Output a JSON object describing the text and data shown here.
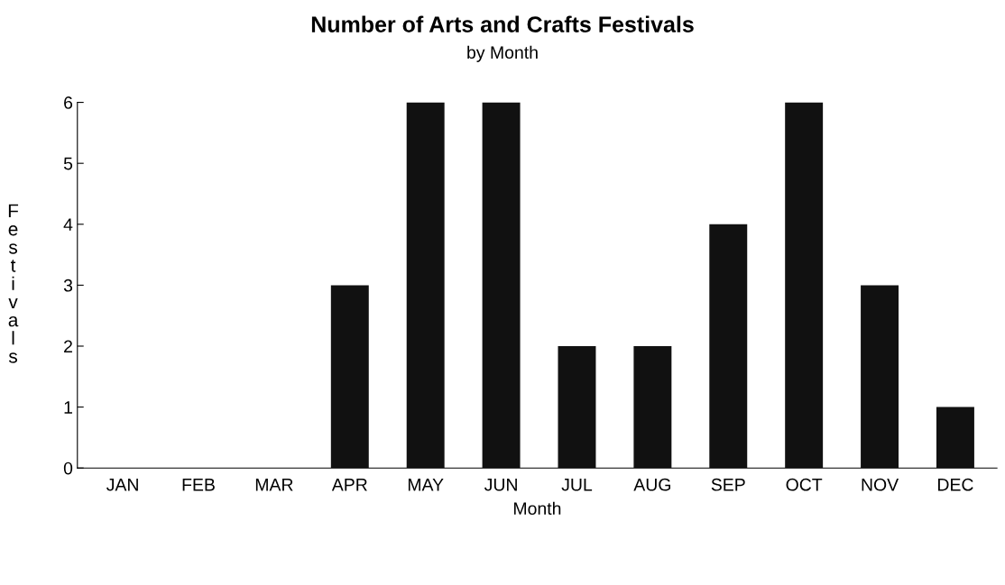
{
  "chart_data": {
    "type": "bar",
    "title": "Number of Arts and Crafts Festivals",
    "subtitle": "by Month",
    "xlabel": "Month",
    "ylabel": "Festivals",
    "categories": [
      "JAN",
      "FEB",
      "MAR",
      "APR",
      "MAY",
      "JUN",
      "JUL",
      "AUG",
      "SEP",
      "OCT",
      "NOV",
      "DEC"
    ],
    "values": [
      0,
      0,
      0,
      3,
      6,
      6,
      2,
      2,
      4,
      6,
      3,
      1
    ],
    "color": "#111111",
    "ylim": [
      0,
      6
    ],
    "yticks": [
      0,
      1,
      2,
      3,
      4,
      5,
      6
    ],
    "grid": false,
    "legend": false
  }
}
